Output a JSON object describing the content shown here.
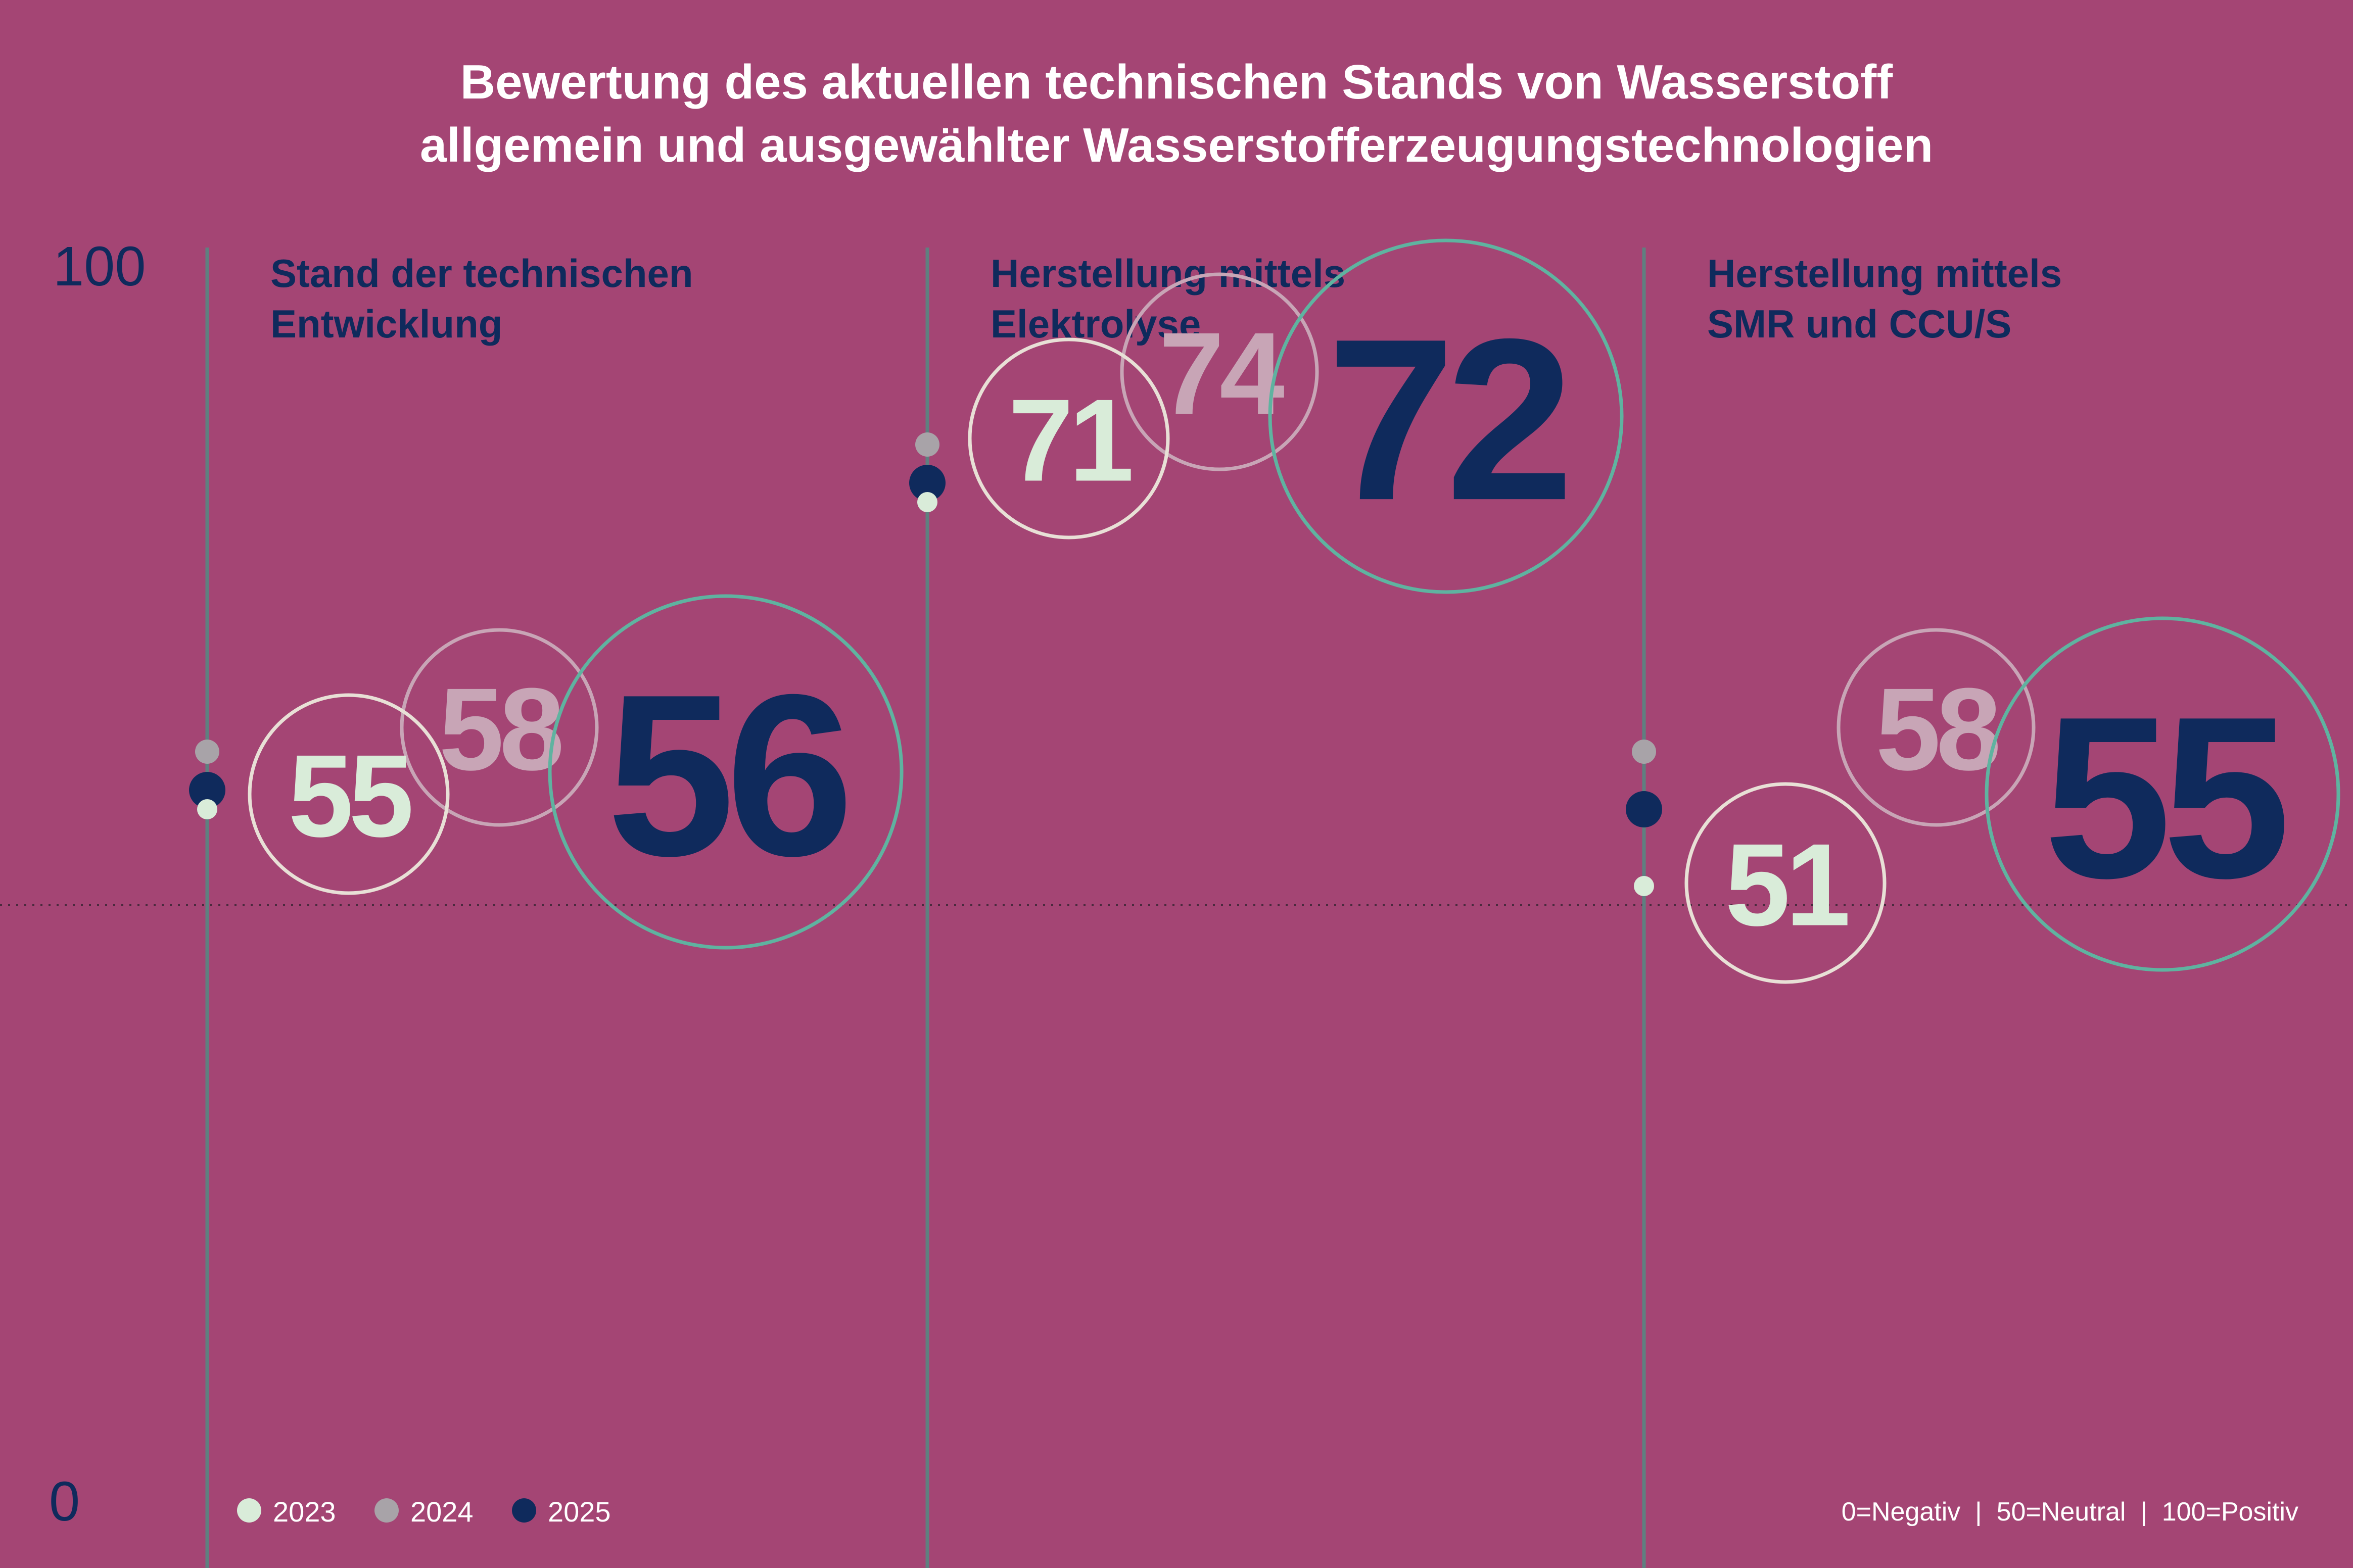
{
  "title_lines": [
    "Bewertung des aktuellen technischen Stands von Wasserstoff",
    "allgemein und ausgewählter Wasserstofferzeugungstechnologien"
  ],
  "y_axis": {
    "max_label": "100",
    "min_label": "0"
  },
  "scale_note": "0=Negativ  |  50=Neutral  |  100=Positiv",
  "colors": {
    "background": "#a44574",
    "title": "#ffffff",
    "panel_title": "#0f2a5c",
    "axis_line": "#5f7f80",
    "reference_line": "#4a2a3e",
    "year_2023": "#d9ecd9",
    "year_2024": "#a8a3a8",
    "year_2025": "#0f2a5c",
    "ring_2023": "#e8e0d6",
    "ring_2024": "#c8a5b6",
    "ring_2025": "#5fb3a0"
  },
  "chart_data": {
    "type": "scatter",
    "ylim": [
      0,
      100
    ],
    "reference_line_y": 50,
    "legend": {
      "position": "bottom-left",
      "entries": [
        {
          "label": "2023",
          "color": "#d9ecd9"
        },
        {
          "label": "2024",
          "color": "#a8a3a8"
        },
        {
          "label": "2025",
          "color": "#0f2a5c"
        }
      ]
    },
    "years": [
      "2023",
      "2024",
      "2025"
    ],
    "panels": [
      {
        "title_lines": [
          "Stand der technischen",
          "Entwicklung"
        ],
        "values": [
          55,
          58,
          56
        ]
      },
      {
        "title_lines": [
          "Herstellung mittels",
          "Elektrolyse"
        ],
        "values": [
          71,
          74,
          72
        ]
      },
      {
        "title_lines": [
          "Herstellung mittels",
          "SMR und CCU/S"
        ],
        "values": [
          51,
          58,
          55
        ]
      }
    ]
  }
}
